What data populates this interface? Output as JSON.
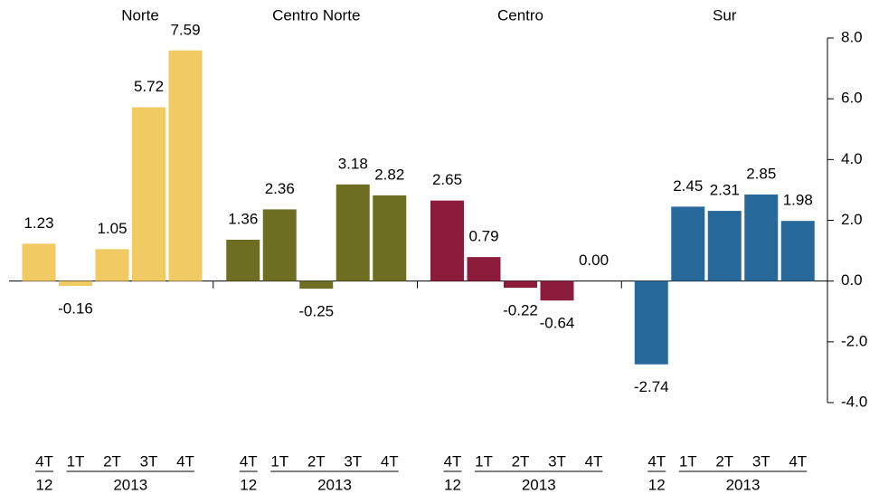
{
  "chart_data": {
    "type": "bar",
    "categories": [
      "4T",
      "1T",
      "2T",
      "3T",
      "4T"
    ],
    "year_groups": [
      {
        "label": "12",
        "categories": [
          "4T"
        ]
      },
      {
        "label": "2013",
        "categories": [
          "1T",
          "2T",
          "3T",
          "4T"
        ]
      }
    ],
    "series": [
      {
        "name": "Norte",
        "color": "#f2ca64",
        "values": [
          1.23,
          -0.16,
          1.05,
          5.72,
          7.59
        ],
        "value_labels": [
          "1.23",
          "-0.16",
          "1.05",
          "5.72",
          "7.59"
        ]
      },
      {
        "name": "Centro Norte",
        "color": "#6e6e22",
        "values": [
          1.36,
          2.36,
          -0.25,
          3.18,
          2.82
        ],
        "value_labels": [
          "1.36",
          "2.36",
          "-0.25",
          "3.18",
          "2.82"
        ]
      },
      {
        "name": "Centro",
        "color": "#8c1c3c",
        "values": [
          2.65,
          0.79,
          -0.22,
          -0.64,
          0
        ],
        "value_labels": [
          "2.65",
          "0.79",
          "-0.22",
          "-0.64",
          "0.00"
        ]
      },
      {
        "name": "Sur",
        "color": "#27699a",
        "values": [
          -2.74,
          2.45,
          2.31,
          2.85,
          1.98
        ],
        "value_labels": [
          "-2.74",
          "2.45",
          "2.31",
          "2.85",
          "1.98"
        ]
      }
    ],
    "ylim": [
      -4,
      8
    ],
    "yticks": [
      {
        "value": 8,
        "label": "8.0"
      },
      {
        "value": 6,
        "label": "6.0"
      },
      {
        "value": 4,
        "label": "4.0"
      },
      {
        "value": 2,
        "label": "2.0"
      },
      {
        "value": 0,
        "label": "0.0"
      },
      {
        "value": -2,
        "label": "-2.0"
      },
      {
        "value": -4,
        "label": "-4.0"
      }
    ],
    "y_axis_side": "right"
  }
}
